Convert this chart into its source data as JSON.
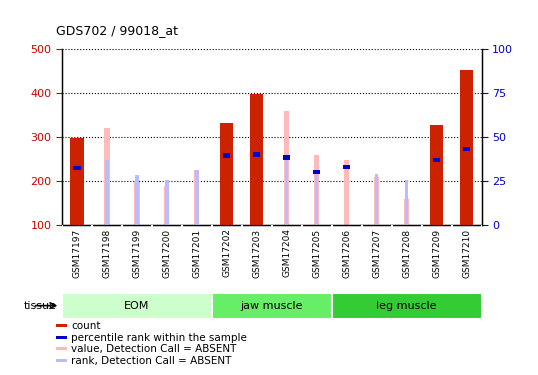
{
  "title": "GDS702 / 99018_at",
  "samples": [
    "GSM17197",
    "GSM17198",
    "GSM17199",
    "GSM17200",
    "GSM17201",
    "GSM17202",
    "GSM17203",
    "GSM17204",
    "GSM17205",
    "GSM17206",
    "GSM17207",
    "GSM17208",
    "GSM17209",
    "GSM17210"
  ],
  "groups": [
    {
      "name": "EOM",
      "indices": [
        0,
        1,
        2,
        3,
        4
      ],
      "color": "#CCFFCC"
    },
    {
      "name": "jaw muscle",
      "indices": [
        5,
        6,
        7,
        8
      ],
      "color": "#66EE66"
    },
    {
      "name": "leg muscle",
      "indices": [
        9,
        10,
        11,
        12,
        13
      ],
      "color": "#33CC33"
    }
  ],
  "count_values": [
    298,
    null,
    null,
    null,
    null,
    332,
    398,
    null,
    null,
    null,
    null,
    null,
    328,
    452
  ],
  "rank_values": [
    230,
    null,
    null,
    null,
    null,
    258,
    260,
    253,
    220,
    232,
    null,
    null,
    247,
    272
  ],
  "absent_value_values": [
    null,
    320,
    198,
    188,
    225,
    null,
    null,
    358,
    258,
    247,
    210,
    158,
    null,
    null
  ],
  "absent_rank_values": [
    null,
    247,
    213,
    202,
    225,
    null,
    null,
    253,
    222,
    null,
    215,
    202,
    null,
    null
  ],
  "ylim_left": [
    100,
    500
  ],
  "ylim_right": [
    0,
    100
  ],
  "yticks_left": [
    100,
    200,
    300,
    400,
    500
  ],
  "yticks_right": [
    0,
    25,
    50,
    75,
    100
  ],
  "left_tick_color": "#CC0000",
  "right_tick_color": "#0000CC",
  "count_color": "#CC2200",
  "rank_color": "#0000CC",
  "absent_value_color": "#FFBBBB",
  "absent_rank_color": "#BBBBFF",
  "tissue_label": "tissue",
  "background_color": "#FFFFFF",
  "plot_bg_color": "#FFFFFF",
  "tick_label_bg": "#DDDDDD",
  "legend": [
    {
      "label": "count",
      "color": "#CC2200"
    },
    {
      "label": "percentile rank within the sample",
      "color": "#0000CC"
    },
    {
      "label": "value, Detection Call = ABSENT",
      "color": "#FFBBBB"
    },
    {
      "label": "rank, Detection Call = ABSENT",
      "color": "#BBBBFF"
    }
  ]
}
